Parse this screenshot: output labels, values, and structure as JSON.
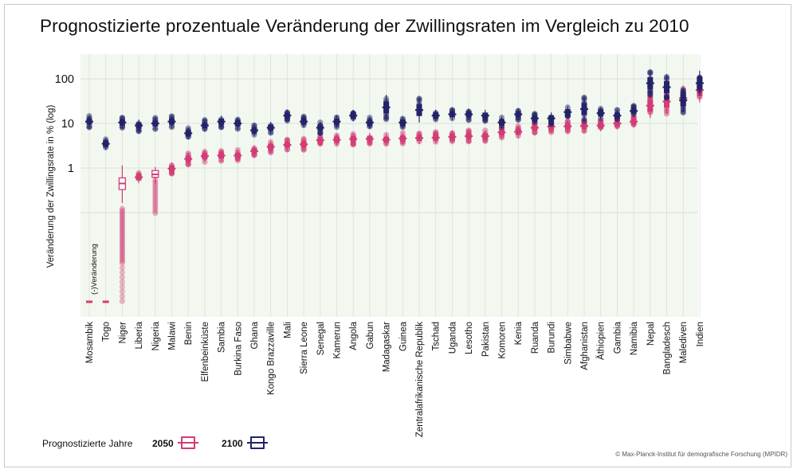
{
  "title": "Prognostizierte prozentuale Veränderung der Zwillingsraten im Vergleich zu 2010",
  "credit": "© Max-Planck-Institut für demografische Forschung (MPIDR)",
  "colors": {
    "y2050": "#d23c75",
    "y2100": "#232369",
    "panel": "#f2f8ef",
    "grid": "#dddddd"
  },
  "legend": {
    "title": "Prognostizierte Jahre",
    "items": [
      {
        "label": "2050",
        "color": "#d23c75"
      },
      {
        "label": "2100",
        "color": "#232369"
      }
    ]
  },
  "chart_data": {
    "type": "boxplot",
    "title": "Prognostizierte prozentuale Veränderung der Zwillingsraten im Vergleich zu 2010",
    "ylabel": "Veränderung der Zwillingsrate  in % (log)",
    "yscale": "log",
    "yticks": [
      "1",
      "10",
      "100"
    ],
    "negative_label": "(-)Veränderung",
    "categories": [
      "Mosambik",
      "Togo",
      "Niger",
      "Liberia",
      "Nigeria",
      "Malawi",
      "Benin",
      "Elfenbeinküste",
      "Sambia",
      "Burkina Faso",
      "Ghana",
      "Kongo Brazzaville",
      "Mali",
      "Sierra Leone",
      "Senegal",
      "Kamerun",
      "Angola",
      "Gabun",
      "Madagaskar",
      "Guinea",
      "Zentralafrikanische Republik",
      "Tschad",
      "Uganda",
      "Lesotho",
      "Pakistan",
      "Komoren",
      "Kenia",
      "Ruanda",
      "Burundi",
      "Simbabwe",
      "Afghanistan",
      "Äthiopien",
      "Gambia",
      "Namibia",
      "Nepal",
      "Bangladesch",
      "Malediven",
      "Indien"
    ],
    "series": [
      {
        "name": "2050",
        "median": [
          "neg",
          "neg",
          0.45,
          0.62,
          0.72,
          0.97,
          1.6,
          1.85,
          1.9,
          1.9,
          2.4,
          3.0,
          3.3,
          3.4,
          4.2,
          4.3,
          4.5,
          4.5,
          4.3,
          4.6,
          4.7,
          4.8,
          5.0,
          5.2,
          5.2,
          6.3,
          6.5,
          8.0,
          8.5,
          8.6,
          8.8,
          9.0,
          10.0,
          11.0,
          25,
          31,
          37,
          56
        ]
      },
      {
        "name": "2100",
        "median": [
          11,
          3.5,
          10.5,
          9.0,
          10.0,
          11.0,
          6.0,
          9.0,
          11.0,
          10.0,
          7.0,
          8.0,
          15,
          11,
          8.0,
          11,
          15,
          10.5,
          23,
          10.5,
          20,
          15,
          16,
          16,
          15,
          10.5,
          16,
          13,
          13,
          18,
          21,
          17,
          15,
          19,
          80,
          65,
          33,
          80
        ]
      }
    ]
  }
}
